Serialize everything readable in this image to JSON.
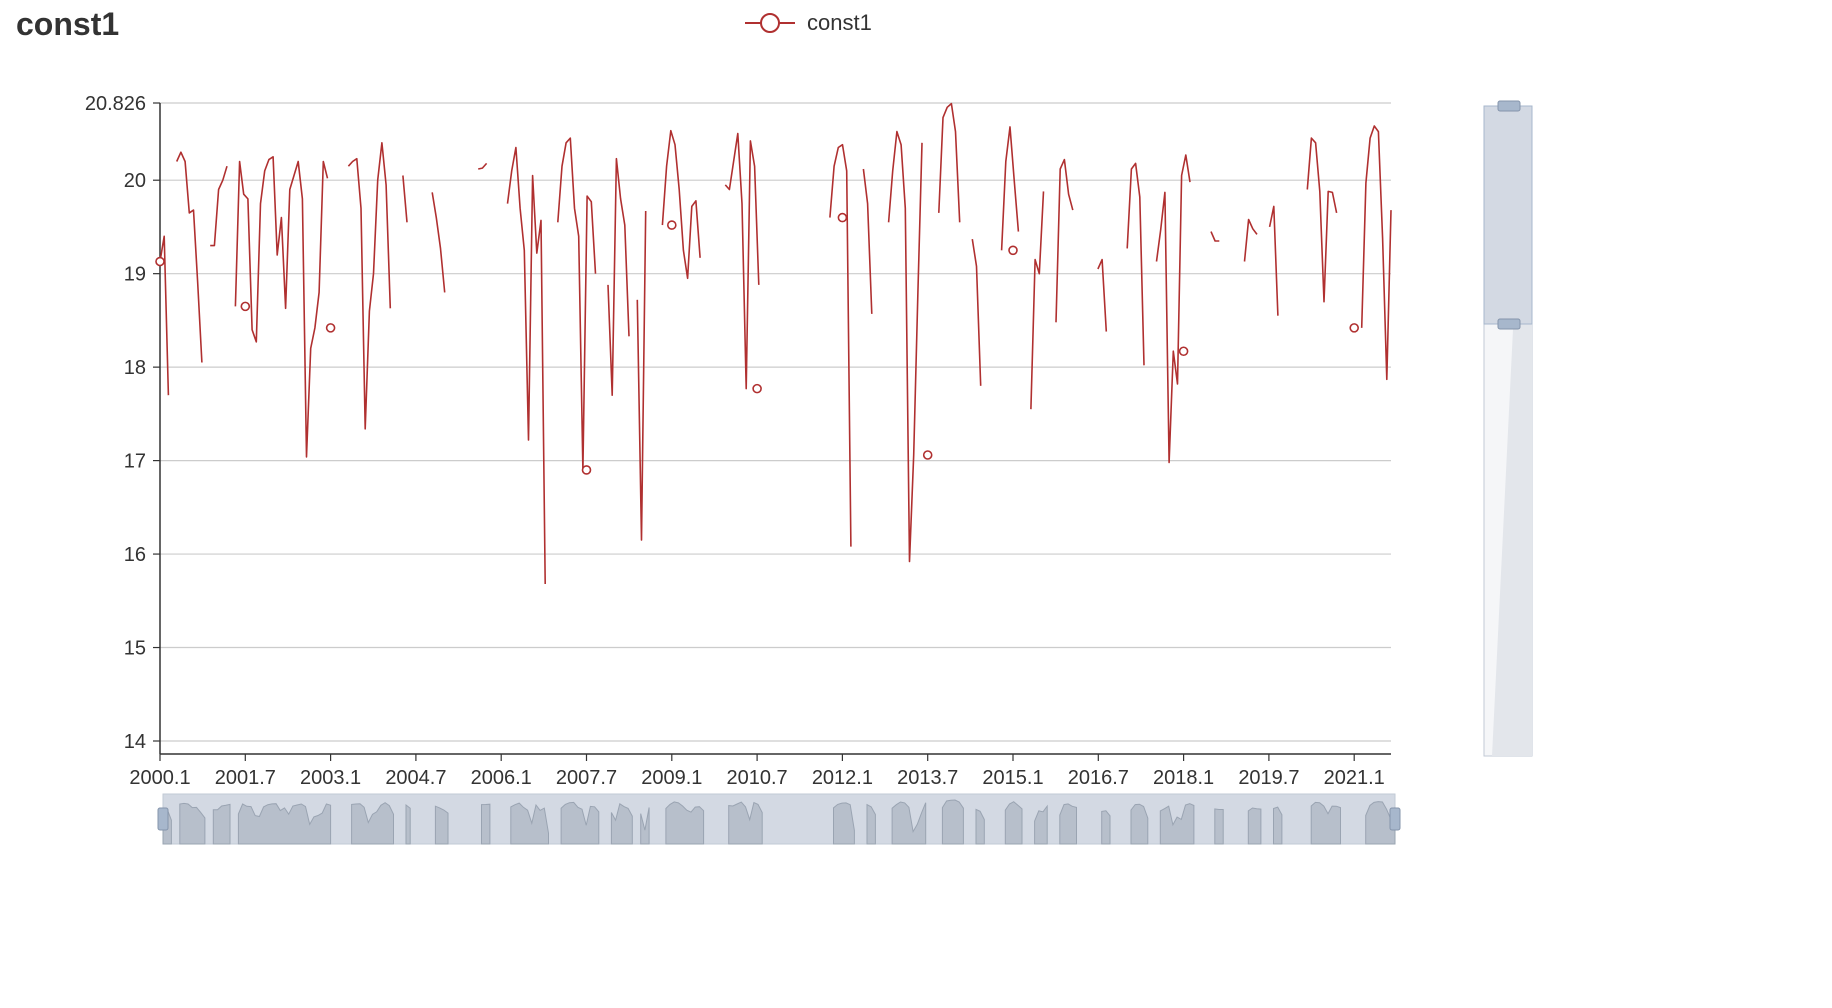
{
  "title": "const1",
  "legend": {
    "label": "const1"
  },
  "colors": {
    "series": "#b03030",
    "grid": "#cccccc",
    "axis": "#333333",
    "slider_fill": "#d3d9e3",
    "slider_handle": "#a7b7cc"
  },
  "chart_data": {
    "type": "line",
    "title": "const1",
    "xlabel": "",
    "ylabel": "",
    "ylim": [
      13.85,
      20.826
    ],
    "y_ticks": [
      "14",
      "15",
      "16",
      "17",
      "18",
      "19",
      "20",
      "20.826"
    ],
    "x_ticks": [
      "2000.1",
      "2001.7",
      "2003.1",
      "2004.7",
      "2006.1",
      "2007.7",
      "2009.1",
      "2010.7",
      "2012.1",
      "2013.7",
      "2015.1",
      "2016.7",
      "2018.1",
      "2019.7",
      "2021.1"
    ],
    "legend_position": "top-center",
    "grid": true,
    "series": [
      {
        "name": "const1",
        "values": [
          19.13,
          19.4,
          17.7,
          null,
          20.2,
          20.3,
          20.2,
          19.65,
          19.68,
          18.9,
          18.05,
          null,
          19.3,
          19.3,
          19.9,
          20.0,
          20.15,
          null,
          18.65,
          20.2,
          19.85,
          19.8,
          18.4,
          18.27,
          19.75,
          20.1,
          20.22,
          20.25,
          19.2,
          19.6,
          18.63,
          19.9,
          20.05,
          20.2,
          19.8,
          17.04,
          18.2,
          18.42,
          18.8,
          20.2,
          20.02,
          null,
          18.6,
          null,
          null,
          20.15,
          20.2,
          20.23,
          19.7,
          17.34,
          18.6,
          19.0,
          20.0,
          20.4,
          19.95,
          18.63,
          null,
          null,
          20.05,
          19.55,
          null,
          null,
          null,
          null,
          null,
          19.87,
          19.6,
          19.27,
          18.8,
          null,
          null,
          null,
          null,
          null,
          null,
          null,
          20.12,
          20.13,
          20.18,
          null,
          null,
          null,
          null,
          19.75,
          20.1,
          20.35,
          19.7,
          19.25,
          17.22,
          20.05,
          19.22,
          19.57,
          15.68,
          null,
          null,
          19.55,
          20.15,
          20.4,
          20.45,
          19.7,
          19.4,
          16.9,
          19.83,
          19.77,
          19.0,
          null,
          null,
          18.88,
          17.7,
          20.23,
          19.8,
          19.52,
          18.33,
          null,
          18.72,
          16.15,
          19.67,
          null,
          null,
          null,
          19.52,
          20.15,
          20.53,
          20.38,
          19.9,
          19.25,
          18.95,
          19.72,
          19.78,
          19.17,
          null,
          null,
          null,
          null,
          null,
          19.95,
          19.9,
          20.2,
          20.5,
          19.75,
          17.77,
          20.42,
          20.15,
          18.88,
          null,
          null,
          null,
          null,
          null,
          null,
          null,
          null,
          null,
          null,
          null,
          null,
          null,
          null,
          null,
          null,
          19.6,
          20.15,
          20.35,
          20.38,
          20.1,
          16.08,
          null,
          null,
          20.12,
          19.75,
          18.57,
          null,
          null,
          null,
          19.55,
          20.1,
          20.52,
          20.38,
          19.7,
          15.92,
          17.06,
          18.8,
          20.4,
          null,
          null,
          null,
          19.65,
          20.67,
          20.78,
          20.82,
          20.52,
          19.55,
          null,
          null,
          19.37,
          19.08,
          17.8,
          null,
          null,
          null,
          null,
          19.25,
          20.2,
          20.57,
          20.0,
          19.45,
          null,
          null,
          17.55,
          19.15,
          19.0,
          19.88,
          null,
          null,
          18.48,
          20.12,
          20.22,
          19.85,
          19.68,
          null,
          null,
          null,
          null,
          null,
          19.05,
          19.15,
          18.38,
          null,
          null,
          null,
          null,
          19.27,
          20.12,
          20.18,
          19.82,
          18.02,
          null,
          null,
          19.13,
          19.47,
          19.87,
          16.98,
          18.17,
          17.82,
          20.05,
          20.27,
          19.98,
          null,
          null,
          null,
          null,
          19.45,
          19.35,
          19.35,
          null,
          null,
          null,
          null,
          null,
          19.13,
          19.58,
          19.48,
          19.42,
          null,
          null,
          19.5,
          19.72,
          18.55,
          null,
          null,
          null,
          null,
          null,
          null,
          19.9,
          20.45,
          20.4,
          19.88,
          18.7,
          19.88,
          19.87,
          19.65,
          null,
          null,
          null,
          null,
          null,
          18.42,
          19.97,
          20.45,
          20.58,
          20.52,
          19.38,
          17.87,
          19.68
        ]
      }
    ],
    "markers": [
      {
        "x": "2000.1",
        "y": 19.13
      },
      {
        "x": "2001.7",
        "y": 18.65
      },
      {
        "x": "2003.1",
        "y": 18.42
      },
      {
        "x": "2007.7",
        "y": 16.9
      },
      {
        "x": "2009.1",
        "y": 19.52
      },
      {
        "x": "2010.7",
        "y": 17.77
      },
      {
        "x": "2012.1",
        "y": 19.6
      },
      {
        "x": "2013.7",
        "y": 17.06
      },
      {
        "x": "2015.1",
        "y": 19.25
      },
      {
        "x": "2018.1",
        "y": 18.17
      },
      {
        "x": "2021.1",
        "y": 18.42
      }
    ]
  },
  "data_zoom": {
    "x_range_percent": [
      0,
      100
    ],
    "y_range_percent": [
      0,
      35
    ]
  }
}
